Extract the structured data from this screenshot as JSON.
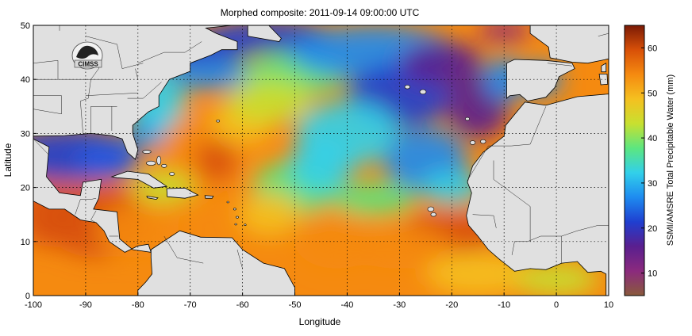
{
  "title": "Morphed composite: 2011-09-14 09:00:00 UTC",
  "xlabel": "Longitude",
  "ylabel": "Latitude",
  "colorbar_label": "SSMI/AMSRE Total Precipitable Water (mm)",
  "logo_text": "CIMSS",
  "land_color": "#e0e0e0",
  "coast_color": "#000000",
  "chart_data": {
    "type": "heatmap",
    "title": "Morphed composite: 2011-09-14 09:00:00 UTC",
    "xlabel": "Longitude",
    "ylabel": "Latitude",
    "xlim": [
      -100,
      10
    ],
    "ylim": [
      0,
      50
    ],
    "x_ticks": [
      "-100",
      "-90",
      "-80",
      "-70",
      "-60",
      "-50",
      "-40",
      "-30",
      "-20",
      "-10",
      "0",
      "10"
    ],
    "y_ticks": [
      "0",
      "10",
      "20",
      "30",
      "40",
      "50"
    ],
    "grid": true,
    "colorbar": {
      "label": "SSMI/AMSRE Total Precipitable Water (mm)",
      "range": [
        5,
        65
      ],
      "ticks": [
        "10",
        "20",
        "30",
        "40",
        "50",
        "60"
      ],
      "colors": [
        "#8a5a3c",
        "#8b2a7e",
        "#5a1f8f",
        "#1f3fd0",
        "#1e8bf0",
        "#32d0ea",
        "#5ce680",
        "#c8e030",
        "#f5c020",
        "#f58a10",
        "#d85008",
        "#7a1a06"
      ]
    }
  }
}
